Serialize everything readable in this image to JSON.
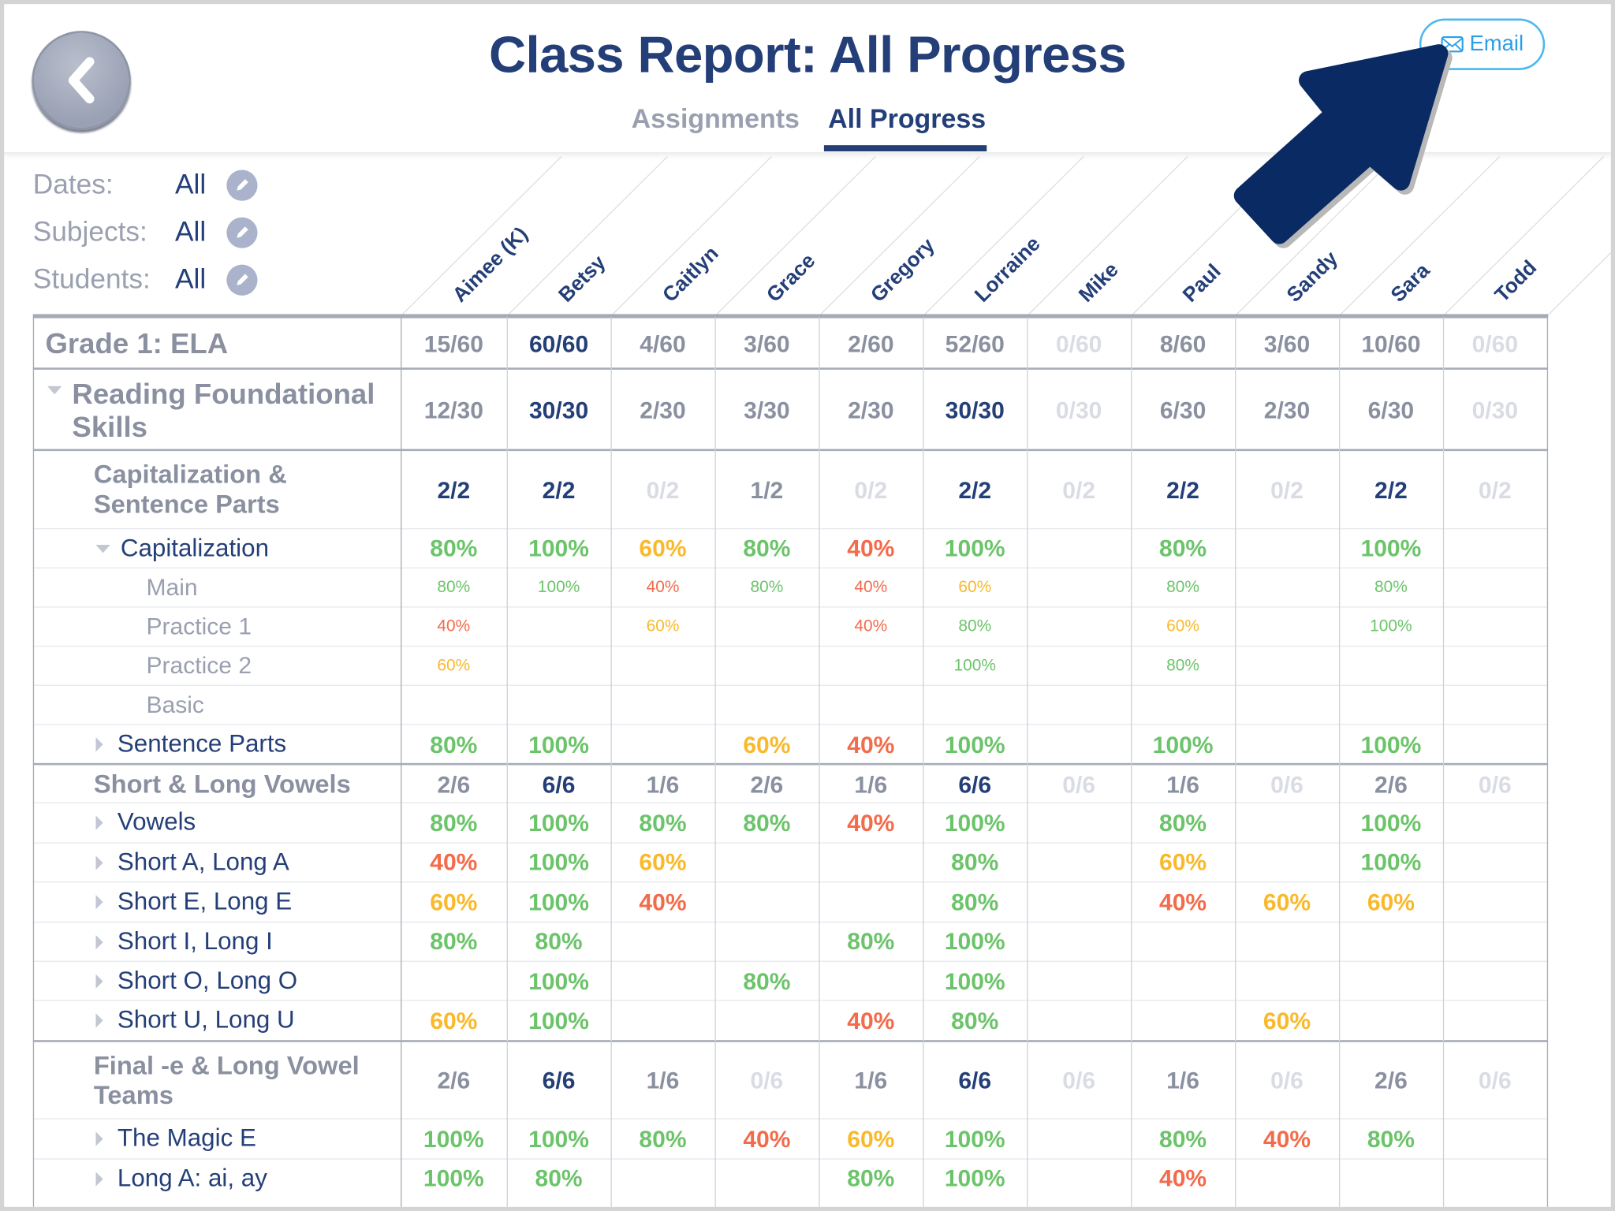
{
  "header": {
    "title": "Class Report: All Progress",
    "tabs": [
      {
        "label": "Assignments",
        "active": false
      },
      {
        "label": "All Progress",
        "active": true
      }
    ],
    "email_label": "Email",
    "back_icon": "chevron-left-icon"
  },
  "filters": [
    {
      "label": "Dates:",
      "value": "All"
    },
    {
      "label": "Subjects:",
      "value": "All"
    },
    {
      "label": "Students:",
      "value": "All"
    }
  ],
  "colors": {
    "navy": "#243f78",
    "gray": "#8a90a0",
    "faded": "#d9dce4",
    "green": "#6cc46a",
    "yellow": "#f9b92b",
    "orange": "#f36b4a",
    "arrow": "#0a2a63",
    "email": "#2a9fe6"
  },
  "students": [
    "Aimee (K)",
    "Betsy",
    "Caitlyn",
    "Grace",
    "Gregory",
    "Lorraine",
    "Mike",
    "Paul",
    "Sandy",
    "Sara",
    "Todd"
  ],
  "rows": [
    {
      "type": "grade",
      "label": "Grade 1: ELA",
      "values": [
        "15/60",
        "60/60",
        "4/60",
        "3/60",
        "2/60",
        "52/60",
        "0/60",
        "8/60",
        "3/60",
        "10/60",
        "0/60"
      ]
    },
    {
      "type": "domain",
      "label": "Reading Foundational Skills",
      "values": [
        "12/30",
        "30/30",
        "2/30",
        "3/30",
        "2/30",
        "30/30",
        "0/30",
        "6/30",
        "2/30",
        "6/30",
        "0/30"
      ]
    },
    {
      "type": "cluster",
      "label": "Capitalization & Sentence Parts",
      "values": [
        "2/2",
        "2/2",
        "0/2",
        "1/2",
        "0/2",
        "2/2",
        "0/2",
        "2/2",
        "0/2",
        "2/2",
        "0/2"
      ]
    },
    {
      "type": "skill",
      "expanded": true,
      "label": "Capitalization",
      "values": [
        "80%",
        "100%",
        "60%",
        "80%",
        "40%",
        "100%",
        "",
        "80%",
        "",
        "100%",
        ""
      ]
    },
    {
      "type": "lesson",
      "label": "Main",
      "values": [
        "80%",
        "100%",
        "40%",
        "80%",
        "40%",
        "60%",
        "",
        "80%",
        "",
        "80%",
        ""
      ]
    },
    {
      "type": "lesson",
      "label": "Practice 1",
      "values": [
        "40%",
        "",
        "60%",
        "",
        "40%",
        "80%",
        "",
        "60%",
        "",
        "100%",
        ""
      ]
    },
    {
      "type": "lesson",
      "label": "Practice 2",
      "values": [
        "60%",
        "",
        "",
        "",
        "",
        "100%",
        "",
        "80%",
        "",
        "",
        ""
      ]
    },
    {
      "type": "lesson",
      "label": "Basic",
      "values": [
        "",
        "",
        "",
        "",
        "",
        "",
        "",
        "",
        "",
        "",
        ""
      ]
    },
    {
      "type": "skill",
      "label": "Sentence Parts",
      "values": [
        "80%",
        "100%",
        "",
        "60%",
        "40%",
        "100%",
        "",
        "100%",
        "",
        "100%",
        ""
      ]
    },
    {
      "type": "cluster",
      "label": "Short & Long Vowels",
      "values": [
        "2/6",
        "6/6",
        "1/6",
        "2/6",
        "1/6",
        "6/6",
        "0/6",
        "1/6",
        "0/6",
        "2/6",
        "0/6"
      ]
    },
    {
      "type": "skill",
      "label": "Vowels",
      "values": [
        "80%",
        "100%",
        "80%",
        "80%",
        "40%",
        "100%",
        "",
        "80%",
        "",
        "100%",
        ""
      ]
    },
    {
      "type": "skill",
      "label": "Short A, Long A",
      "values": [
        "40%",
        "100%",
        "60%",
        "",
        "",
        "80%",
        "",
        "60%",
        "",
        "100%",
        ""
      ]
    },
    {
      "type": "skill",
      "label": "Short E, Long E",
      "values": [
        "60%",
        "100%",
        "40%",
        "",
        "",
        "80%",
        "",
        "40%",
        "60%",
        "60%",
        ""
      ]
    },
    {
      "type": "skill",
      "label": "Short I, Long I",
      "values": [
        "80%",
        "80%",
        "",
        "",
        "80%",
        "100%",
        "",
        "",
        "",
        "",
        ""
      ]
    },
    {
      "type": "skill",
      "label": "Short O, Long O",
      "values": [
        "",
        "100%",
        "",
        "80%",
        "",
        "100%",
        "",
        "",
        "",
        "",
        ""
      ]
    },
    {
      "type": "skill",
      "label": "Short U, Long U",
      "values": [
        "60%",
        "100%",
        "",
        "",
        "40%",
        "80%",
        "",
        "",
        "60%",
        "",
        ""
      ]
    },
    {
      "type": "cluster",
      "label": "Final -e & Long Vowel Teams",
      "values": [
        "2/6",
        "6/6",
        "1/6",
        "0/6",
        "1/6",
        "6/6",
        "0/6",
        "1/6",
        "0/6",
        "2/6",
        "0/6"
      ]
    },
    {
      "type": "skill",
      "label": "The Magic E",
      "values": [
        "100%",
        "100%",
        "80%",
        "40%",
        "60%",
        "100%",
        "",
        "80%",
        "40%",
        "80%",
        ""
      ]
    },
    {
      "type": "skill",
      "label": "Long A: ai, ay",
      "values": [
        "100%",
        "80%",
        "",
        "",
        "80%",
        "100%",
        "",
        "40%",
        "",
        "",
        ""
      ]
    }
  ]
}
